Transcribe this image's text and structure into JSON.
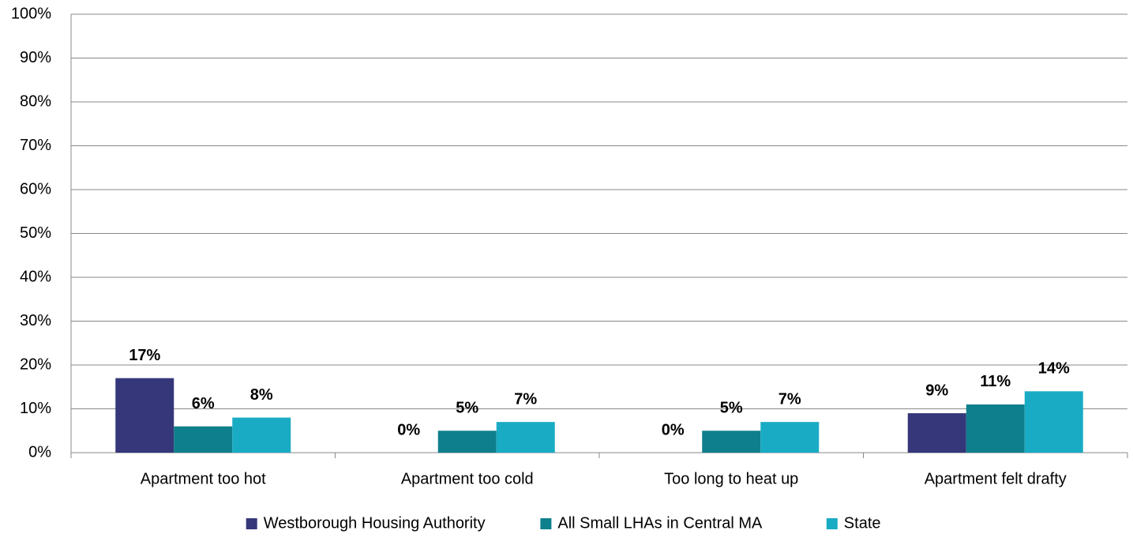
{
  "chart_data": {
    "type": "bar",
    "categories": [
      "Apartment too hot",
      "Apartment too cold",
      "Too long to heat up",
      "Apartment felt drafty"
    ],
    "series": [
      {
        "name": "Westborough Housing Authority",
        "color": "#35377a",
        "values": [
          17,
          0,
          0,
          9
        ],
        "value_labels": [
          "17%",
          "0%",
          "0%",
          "9%"
        ]
      },
      {
        "name": "All Small LHAs in Central MA",
        "color": "#0e7f8c",
        "values": [
          6,
          5,
          5,
          11
        ],
        "value_labels": [
          "6%",
          "5%",
          "5%",
          "11%"
        ]
      },
      {
        "name": "State",
        "color": "#1aabc4",
        "values": [
          8,
          7,
          7,
          14
        ],
        "value_labels": [
          "8%",
          "7%",
          "7%",
          "14%"
        ]
      }
    ],
    "ylim": [
      0,
      100
    ],
    "yticks": [
      {
        "value": 0,
        "label": "0%"
      },
      {
        "value": 10,
        "label": "10%"
      },
      {
        "value": 20,
        "label": "20%"
      },
      {
        "value": 30,
        "label": "30%"
      },
      {
        "value": 40,
        "label": "40%"
      },
      {
        "value": 50,
        "label": "50%"
      },
      {
        "value": 60,
        "label": "60%"
      },
      {
        "value": 70,
        "label": "70%"
      },
      {
        "value": 80,
        "label": "80%"
      },
      {
        "value": 90,
        "label": "90%"
      },
      {
        "value": 100,
        "label": "100%"
      }
    ],
    "grid": true,
    "legend": "bottom"
  }
}
